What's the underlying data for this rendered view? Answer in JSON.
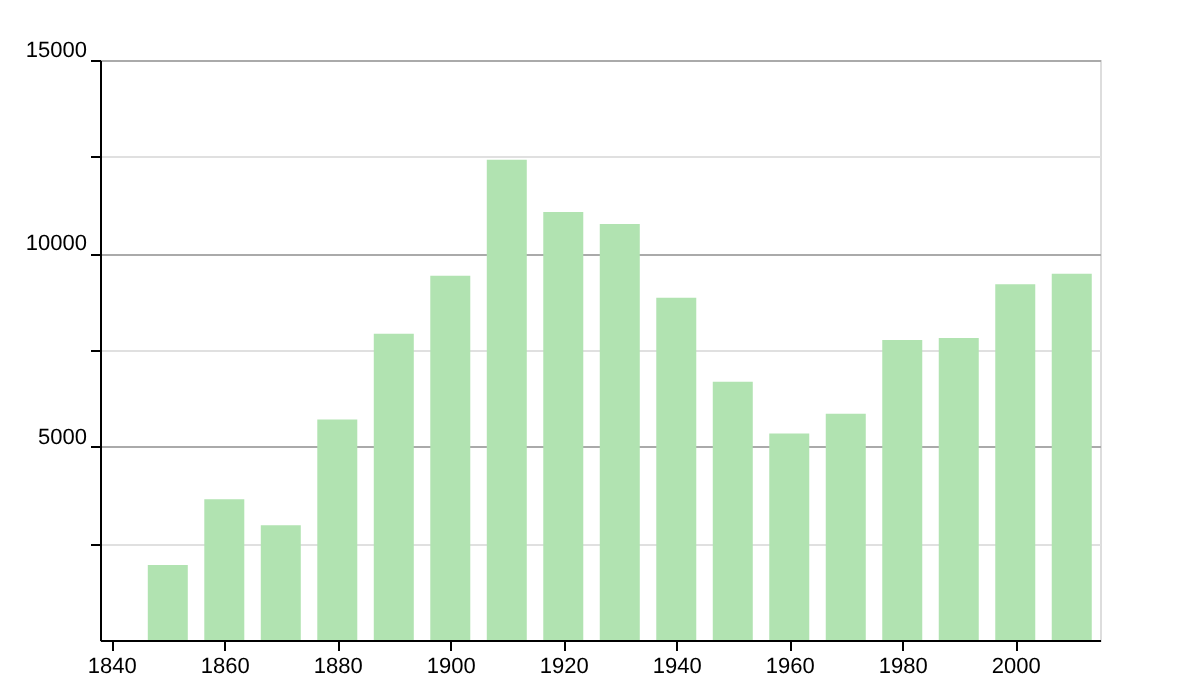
{
  "chart_data": {
    "type": "bar",
    "x": [
      1850,
      1860,
      1870,
      1880,
      1890,
      1900,
      1910,
      1920,
      1930,
      1940,
      1950,
      1960,
      1970,
      1980,
      1990,
      2000,
      2010
    ],
    "values": [
      1940,
      3640,
      2970,
      5700,
      7920,
      9420,
      12420,
      11070,
      10760,
      8850,
      6680,
      5340,
      5850,
      7760,
      7810,
      9200,
      9470
    ],
    "color": "#b1e3b1",
    "xlim": [
      1838,
      2015
    ],
    "xticks": [
      1840,
      1860,
      1880,
      1900,
      1920,
      1940,
      1960,
      1980,
      2000
    ],
    "ylim": [
      0,
      15000
    ],
    "yticks": [
      {
        "value": 2500,
        "label": null
      },
      5000,
      {
        "value": 7500,
        "label": null
      },
      10000,
      {
        "value": 12500,
        "label": null
      },
      15000
    ],
    "grid": "y"
  }
}
